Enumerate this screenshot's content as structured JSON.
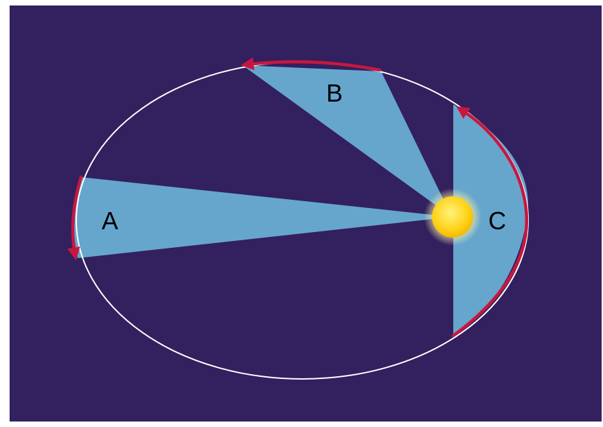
{
  "diagram": {
    "colors": {
      "background": "#33205f",
      "sector_fill": "#66a6cd",
      "orbit_line": "#ffffff",
      "arc_arrow": "#c8173f",
      "sun_core": "#ffd21a",
      "sun_glow": "#fff4a8",
      "label_text": "#000000"
    },
    "sectors": [
      {
        "id": "A",
        "label": "A"
      },
      {
        "id": "B",
        "label": "B"
      },
      {
        "id": "C",
        "label": "C"
      }
    ]
  }
}
